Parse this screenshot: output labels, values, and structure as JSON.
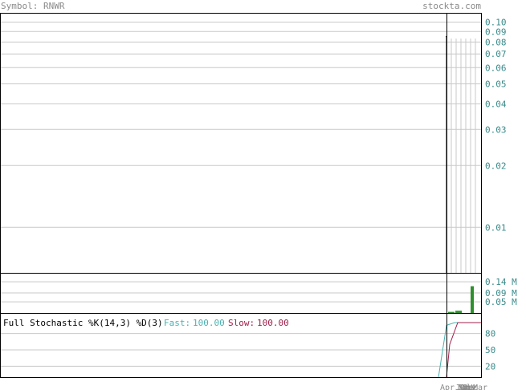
{
  "header": {
    "symbol_label": "Symbol: RNWR",
    "site": "stockta.com"
  },
  "colors": {
    "grid": "#c8c8c8",
    "frame": "#000000",
    "axis_text": "#3a8a8a",
    "price_line": "#000000",
    "volume_bar": "#2f8f2f",
    "fast_line": "#4ab2b2",
    "slow_line": "#a0204a"
  },
  "chart_data": [
    {
      "type": "line",
      "panel": "price",
      "y_scale": "log",
      "ylim": [
        0.006,
        0.11
      ],
      "yticks": [
        "0.10",
        "0.09",
        "0.08",
        "0.07",
        "0.06",
        "0.05",
        "0.04",
        "0.03",
        "0.02",
        "0.01"
      ],
      "series": [
        {
          "values": [
            0.085,
            0.085,
            0.02,
            0.006
          ]
        }
      ]
    },
    {
      "type": "bar",
      "panel": "volume",
      "ylim": [
        0,
        0.18
      ],
      "yticks": [
        "0.14 M",
        "0.09 M",
        "0.05 M"
      ],
      "values": [
        0.005,
        0.01,
        0.12
      ]
    },
    {
      "type": "line",
      "panel": "stochastic",
      "title": "Full Stochastic %K(14,3) %D(3)",
      "fast_label": "Fast:",
      "fast_value": "100.00",
      "slow_label": "Slow:",
      "slow_value": "100.00",
      "ylim": [
        0,
        100
      ],
      "yticks": [
        "80",
        "50",
        "20"
      ],
      "series": [
        {
          "name": "Fast",
          "values": [
            0,
            95,
            100,
            100
          ]
        },
        {
          "name": "Slow",
          "values": [
            0,
            60,
            100,
            100
          ]
        }
      ]
    }
  ],
  "x_labels": [
    "Apr",
    "Jun",
    "Jul",
    "Sep",
    "Oct",
    "Nov",
    "Dec",
    "Mar"
  ]
}
